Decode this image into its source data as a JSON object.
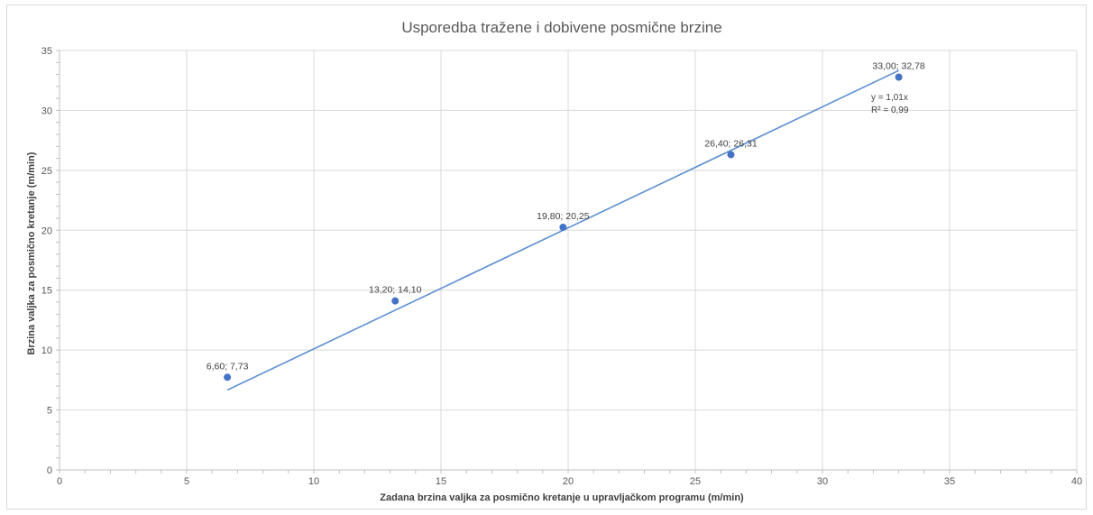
{
  "chart_data": {
    "type": "scatter",
    "title": "Usporedba tražene i dobivene posmične brzine",
    "xlabel": "Zadana brzina valjka za posmično kretanje u upravljačkom programu (m/min)",
    "ylabel": "Brzina valjka za posmično kretanje (m/min)",
    "xlim": [
      0,
      40
    ],
    "ylim": [
      0,
      35
    ],
    "x_ticks": [
      "0",
      "5",
      "10",
      "15",
      "20",
      "25",
      "30",
      "35",
      "40"
    ],
    "y_ticks": [
      "0",
      "5",
      "10",
      "15",
      "20",
      "25",
      "30",
      "35"
    ],
    "grid": true,
    "series": [
      {
        "color": "#4472c4",
        "points": [
          {
            "x": 6.6,
            "y": 7.73,
            "label": "6,60; 7,73"
          },
          {
            "x": 13.2,
            "y": 14.1,
            "label": "13,20; 14,10"
          },
          {
            "x": 19.8,
            "y": 20.25,
            "label": "19,80; 20,25"
          },
          {
            "x": 26.4,
            "y": 26.31,
            "label": "26,40; 26,31"
          },
          {
            "x": 33.0,
            "y": 32.78,
            "label": "33,00; 32,78"
          }
        ]
      }
    ],
    "trendline": {
      "type": "linear",
      "slope": 1.01,
      "x_range": [
        6.6,
        33.0
      ],
      "color": "#5b8fd0",
      "equation": "y = 1,01x",
      "r_squared": "R² = 0,99"
    }
  }
}
